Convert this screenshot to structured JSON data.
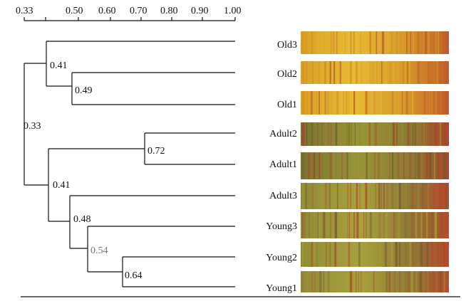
{
  "axis": {
    "ticks": [
      "0.33",
      "0.50",
      "0.60",
      "0.70",
      "0.80",
      "0.90",
      "1.00"
    ]
  },
  "nodes": [
    "0.33",
    "0.41",
    "0.49",
    "0.41",
    "0.72",
    "0.48",
    "0.54",
    "0.64"
  ],
  "leaves": [
    "Old3",
    "Old2",
    "Old1",
    "Adult2",
    "Adult1",
    "Adult3",
    "Young3",
    "Young2",
    "Young1"
  ],
  "colors": {
    "line": "#111111",
    "faded_label": "#777777",
    "lane_old": [
      "#e2b42a",
      "#cf8a22",
      "#b55a26"
    ],
    "lane_adult": [
      "#8f8f34",
      "#6c5a2a",
      "#a5432c"
    ],
    "lane_young": [
      "#a29a3a",
      "#7a5a32",
      "#b04a2e"
    ]
  }
}
